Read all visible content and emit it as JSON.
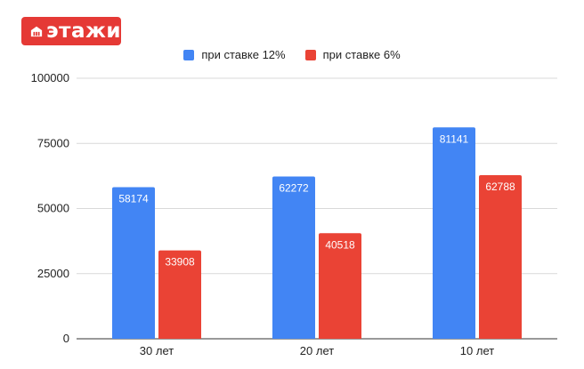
{
  "brand": {
    "name": "этажи",
    "icon": "building-icon",
    "color": "#e53935"
  },
  "chart_data": {
    "type": "bar",
    "categories": [
      "30 лет",
      "20 лет",
      "10 лет"
    ],
    "series": [
      {
        "name": "при ставке 12%",
        "color": "#4285f4",
        "values": [
          58174,
          62272,
          81141
        ]
      },
      {
        "name": "при ставке 6%",
        "color": "#ea4335",
        "values": [
          33908,
          40518,
          62788
        ]
      }
    ],
    "yticks": [
      0,
      25000,
      50000,
      75000,
      100000
    ],
    "ylim": [
      0,
      100000
    ],
    "grid": true,
    "legend": "top-center",
    "title": "",
    "xlabel": "",
    "ylabel": ""
  }
}
